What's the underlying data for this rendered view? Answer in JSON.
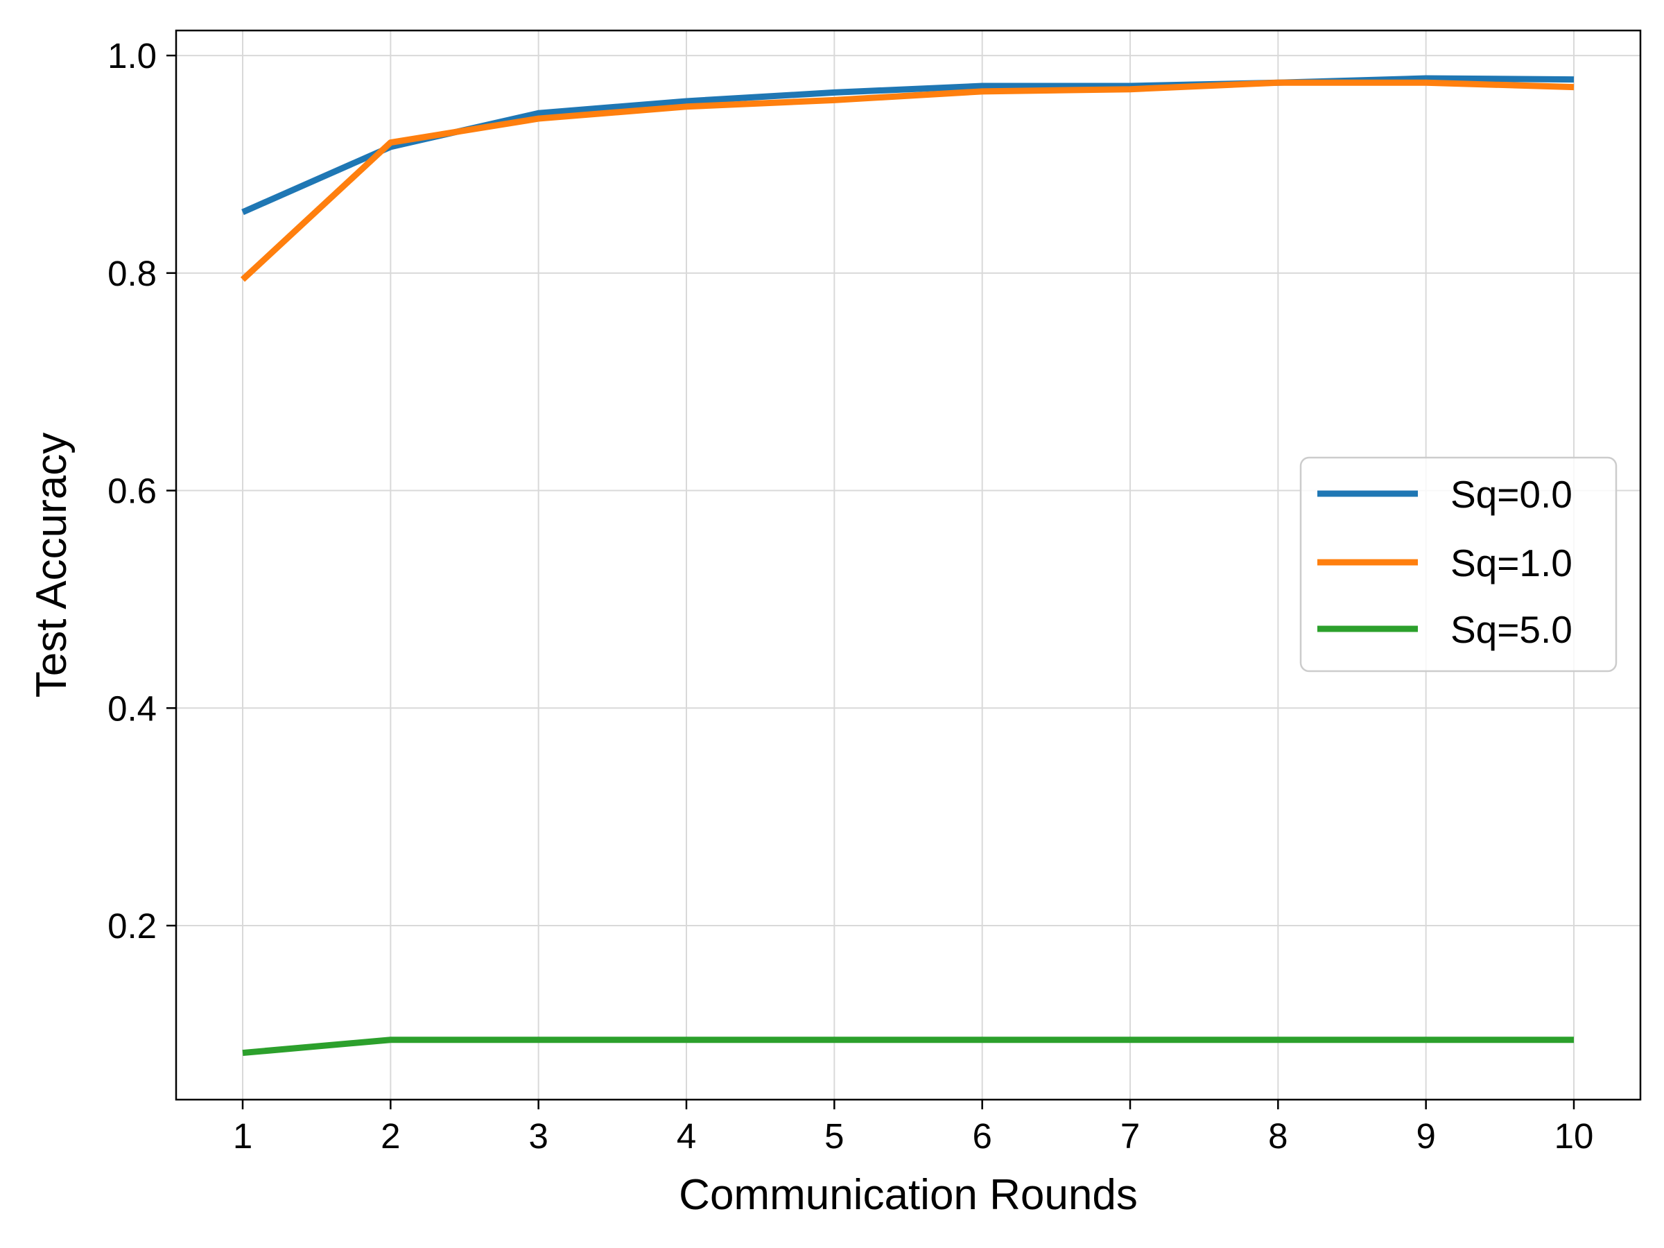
{
  "chart_data": {
    "type": "line",
    "title": "",
    "xlabel": "Communication Rounds",
    "ylabel": "Test Accuracy",
    "x": [
      1,
      2,
      3,
      4,
      5,
      6,
      7,
      8,
      9,
      10
    ],
    "xlim": [
      0.55,
      10.45
    ],
    "ylim": [
      0.04,
      1.023
    ],
    "xticks": [
      1,
      2,
      3,
      4,
      5,
      6,
      7,
      8,
      9,
      10
    ],
    "xtick_labels": [
      "1",
      "2",
      "3",
      "4",
      "5",
      "6",
      "7",
      "8",
      "9",
      "10"
    ],
    "yticks": [
      0.2,
      0.4,
      0.6,
      0.8,
      1.0
    ],
    "ytick_labels": [
      "0.2",
      "0.4",
      "0.6",
      "0.8",
      "1.0"
    ],
    "grid": true,
    "legend_position": "center-right",
    "series": [
      {
        "name": "Sq=0.0",
        "color": "#1f77b4",
        "values": [
          0.856,
          0.916,
          0.947,
          0.958,
          0.966,
          0.972,
          0.972,
          0.975,
          0.979,
          0.978
        ]
      },
      {
        "name": "Sq=1.0",
        "color": "#ff7f0e",
        "values": [
          0.794,
          0.92,
          0.942,
          0.953,
          0.959,
          0.967,
          0.969,
          0.975,
          0.975,
          0.971
        ]
      },
      {
        "name": "Sq=5.0",
        "color": "#2ca02c",
        "values": [
          0.083,
          0.095,
          0.095,
          0.095,
          0.095,
          0.095,
          0.095,
          0.095,
          0.095,
          0.095
        ]
      }
    ]
  }
}
